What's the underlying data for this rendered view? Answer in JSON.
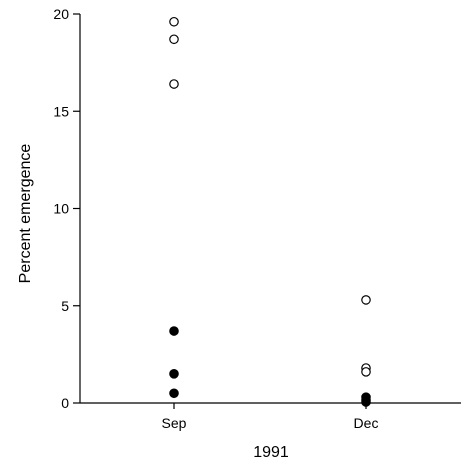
{
  "chart_data": {
    "type": "scatter",
    "title": "",
    "xlabel": "1991",
    "ylabel": "Percent emergence",
    "categories": [
      "Sep",
      "Dec"
    ],
    "ylim": [
      0,
      20
    ],
    "yticks": [
      0,
      5,
      10,
      15,
      20
    ],
    "grid": false,
    "legend": "none",
    "series": [
      {
        "marker": "open-circle",
        "color": "#000000",
        "points": [
          {
            "x": "Sep",
            "y": 19.6
          },
          {
            "x": "Sep",
            "y": 18.7
          },
          {
            "x": "Sep",
            "y": 16.4
          },
          {
            "x": "Dec",
            "y": 5.3
          },
          {
            "x": "Dec",
            "y": 1.8
          },
          {
            "x": "Dec",
            "y": 1.6
          }
        ]
      },
      {
        "marker": "filled-circle",
        "color": "#000000",
        "points": [
          {
            "x": "Sep",
            "y": 3.7
          },
          {
            "x": "Sep",
            "y": 1.5
          },
          {
            "x": "Sep",
            "y": 0.5
          },
          {
            "x": "Dec",
            "y": 0.3
          },
          {
            "x": "Dec",
            "y": 0.15
          },
          {
            "x": "Dec",
            "y": 0.05
          }
        ]
      }
    ]
  }
}
